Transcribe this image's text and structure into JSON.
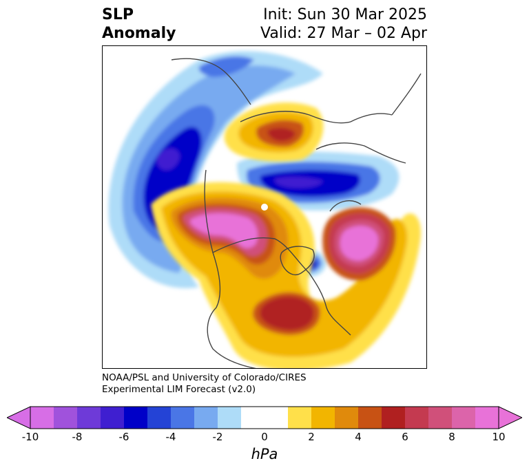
{
  "title": {
    "variable_line1": "SLP",
    "variable_line2": "Anomaly",
    "init": "Init: Sun 30 Mar 2025",
    "valid": "Valid: 27 Mar – 02 Apr"
  },
  "credit": {
    "line1": "NOAA/PSL and University of Colorado/CIRES",
    "line2": "Experimental LIM Forecast (v2.0)"
  },
  "colorbar": {
    "unit": "hPa",
    "tick_labels": [
      "-10",
      "-8",
      "-6",
      "-4",
      "-2",
      "0",
      "2",
      "4",
      "6",
      "8",
      "10"
    ],
    "colors": [
      "#d76ee6",
      "#a052dc",
      "#6e3ad8",
      "#3f1fd0",
      "#0000c8",
      "#2443d6",
      "#4a76e6",
      "#78aaf0",
      "#aedcf8",
      "#ffffff",
      "#ffffff",
      "#ffe04a",
      "#f2b500",
      "#e08a0c",
      "#c85214",
      "#b02020",
      "#c43a50",
      "#d0507a",
      "#dc64aa",
      "#e872d8"
    ],
    "min_color": "#d76ee6",
    "max_color": "#e872d8"
  }
}
